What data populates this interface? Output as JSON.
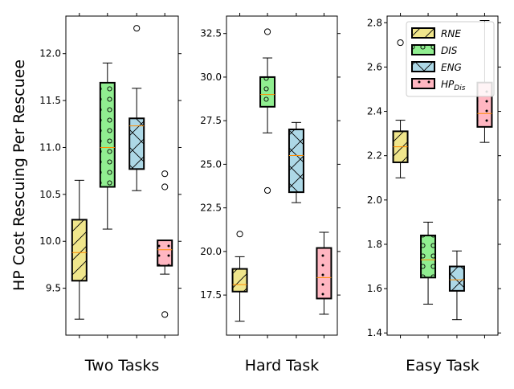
{
  "chart_data": {
    "type": "boxplot",
    "ylabel": "HP Cost Rescuing Per Rescuee",
    "series_names": [
      "RNE",
      "DIS",
      "ENG",
      "HP"
    ],
    "legend": [
      {
        "label": "RNE",
        "sub": "",
        "color": "#f0e68c",
        "hatch": "diag"
      },
      {
        "label": "DIS",
        "sub": "",
        "color": "#90ee90",
        "hatch": "circles"
      },
      {
        "label": "ENG",
        "sub": "",
        "color": "#add8e6",
        "hatch": "cross"
      },
      {
        "label": "HP",
        "sub": "Dis",
        "color": "#ffb6c1",
        "hatch": "dots"
      }
    ],
    "legend_position": "top-right of third panel",
    "panels": [
      {
        "label": "Two Tasks",
        "ylim": [
          9.0,
          12.4
        ],
        "yticks": [
          "9.5",
          "10.0",
          "10.5",
          "11.0",
          "11.5",
          "12.0"
        ],
        "boxes": [
          {
            "series": "RNE",
            "whislo": 9.17,
            "q1": 9.58,
            "med": 9.88,
            "q3": 10.23,
            "whishi": 10.65,
            "fliers": []
          },
          {
            "series": "DIS",
            "whislo": 10.13,
            "q1": 10.58,
            "med": 11.0,
            "q3": 11.69,
            "whishi": 11.9,
            "fliers": []
          },
          {
            "series": "ENG",
            "whislo": 10.54,
            "q1": 10.77,
            "med": 11.23,
            "q3": 11.31,
            "whishi": 11.63,
            "fliers": [
              12.27
            ]
          },
          {
            "series": "HP",
            "whislo": 9.65,
            "q1": 9.74,
            "med": 9.91,
            "q3": 10.01,
            "whishi": 10.01,
            "fliers": [
              10.72,
              10.58,
              9.22
            ]
          }
        ]
      },
      {
        "label": "Hard Task",
        "ylim": [
          15.2,
          33.5
        ],
        "yticks": [
          "17.5",
          "20.0",
          "22.5",
          "25.0",
          "27.5",
          "30.0",
          "32.5"
        ],
        "boxes": [
          {
            "series": "RNE",
            "whislo": 16.0,
            "q1": 17.7,
            "med": 18.1,
            "q3": 19.0,
            "whishi": 19.7,
            "fliers": [
              21.0
            ]
          },
          {
            "series": "DIS",
            "whislo": 26.8,
            "q1": 28.3,
            "med": 29.0,
            "q3": 30.0,
            "whishi": 31.1,
            "fliers": [
              32.6,
              23.5
            ]
          },
          {
            "series": "ENG",
            "whislo": 22.8,
            "q1": 23.4,
            "med": 25.5,
            "q3": 27.0,
            "whishi": 27.4,
            "fliers": []
          },
          {
            "series": "HP",
            "whislo": 16.4,
            "q1": 17.3,
            "med": 18.5,
            "q3": 20.2,
            "whishi": 21.1,
            "fliers": []
          }
        ]
      },
      {
        "label": "Easy Task",
        "ylim": [
          1.39,
          2.83
        ],
        "yticks": [
          "1.4",
          "1.6",
          "1.8",
          "2.0",
          "2.2",
          "2.4",
          "2.6",
          "2.8"
        ],
        "boxes": [
          {
            "series": "RNE",
            "whislo": 2.1,
            "q1": 2.17,
            "med": 2.24,
            "q3": 2.31,
            "whishi": 2.36,
            "fliers": [
              2.71
            ]
          },
          {
            "series": "DIS",
            "whislo": 1.53,
            "q1": 1.65,
            "med": 1.73,
            "q3": 1.84,
            "whishi": 1.9,
            "fliers": []
          },
          {
            "series": "ENG",
            "whislo": 1.46,
            "q1": 1.59,
            "med": 1.64,
            "q3": 1.7,
            "whishi": 1.77,
            "fliers": []
          },
          {
            "series": "HP",
            "whislo": 2.26,
            "q1": 2.33,
            "med": 2.39,
            "q3": 2.53,
            "whishi": 2.81,
            "fliers": []
          }
        ]
      }
    ]
  }
}
